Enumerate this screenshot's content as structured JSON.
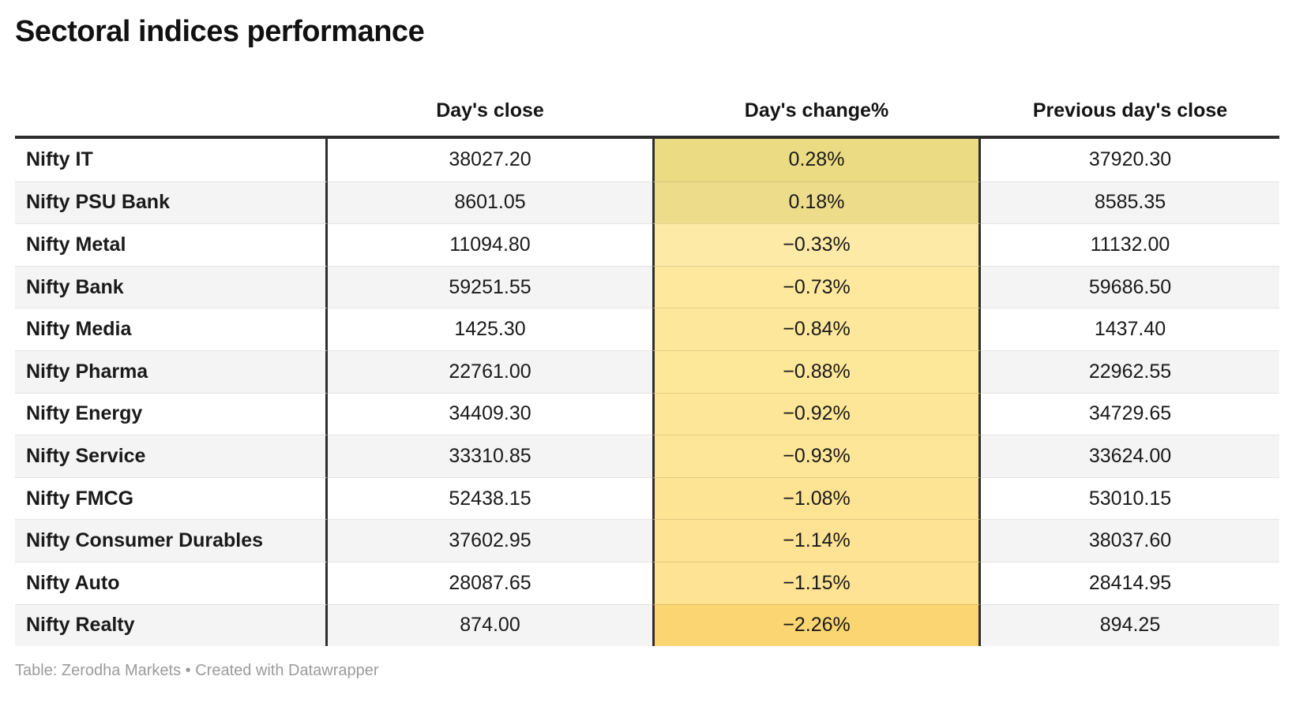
{
  "title": "Sectoral indices performance",
  "columns": [
    "",
    "Day's close",
    "Day's change%",
    "Previous day's close"
  ],
  "rows": [
    {
      "name": "Nifty IT",
      "close": "38027.20",
      "change": "0.28%",
      "prev": "37920.30",
      "heat": "#ebdb83"
    },
    {
      "name": "Nifty PSU Bank",
      "close": "8601.05",
      "change": "0.18%",
      "prev": "8585.35",
      "heat": "#eddd8a"
    },
    {
      "name": "Nifty Metal",
      "close": "11094.80",
      "change": "−0.33%",
      "prev": "11132.00",
      "heat": "#fceaa6"
    },
    {
      "name": "Nifty Bank",
      "close": "59251.55",
      "change": "−0.73%",
      "prev": "59686.50",
      "heat": "#fde89d"
    },
    {
      "name": "Nifty Media",
      "close": "1425.30",
      "change": "−0.84%",
      "prev": "1437.40",
      "heat": "#fde79a"
    },
    {
      "name": "Nifty Pharma",
      "close": "22761.00",
      "change": "−0.88%",
      "prev": "22962.55",
      "heat": "#fde799"
    },
    {
      "name": "Nifty Energy",
      "close": "34409.30",
      "change": "−0.92%",
      "prev": "34729.65",
      "heat": "#fde697"
    },
    {
      "name": "Nifty Service",
      "close": "33310.85",
      "change": "−0.93%",
      "prev": "33624.00",
      "heat": "#fde697"
    },
    {
      "name": "Nifty FMCG",
      "close": "52438.15",
      "change": "−1.08%",
      "prev": "53010.15",
      "heat": "#fde494"
    },
    {
      "name": "Nifty Consumer Durables",
      "close": "37602.95",
      "change": "−1.14%",
      "prev": "38037.60",
      "heat": "#fde393"
    },
    {
      "name": "Nifty Auto",
      "close": "28087.65",
      "change": "−1.15%",
      "prev": "28414.95",
      "heat": "#fde393"
    },
    {
      "name": "Nifty Realty",
      "close": "874.00",
      "change": "−2.26%",
      "prev": "894.25",
      "heat": "#fbd571"
    }
  ],
  "footer": {
    "text": "Table: Zerodha Markets • Created with Datawrapper"
  },
  "colors": {
    "header_border": "#2d2d2d",
    "column_divider": "#2e2e2e",
    "row_divider": "#e3e3e3",
    "alt_row_bg": "#f4f4f4",
    "footer_text": "#9b9b9b",
    "heat_min": "#fbd571",
    "heat_mid": "#fceaa6",
    "heat_max": "#ebdb83"
  },
  "chart_data": {
    "type": "table",
    "title": "Sectoral indices performance",
    "columns": [
      "",
      "Day's close",
      "Day's change%",
      "Previous day's close"
    ],
    "rows": [
      [
        "Nifty IT",
        38027.2,
        "0.28%",
        37920.3
      ],
      [
        "Nifty PSU Bank",
        8601.05,
        "0.18%",
        8585.35
      ],
      [
        "Nifty Metal",
        11094.8,
        "-0.33%",
        11132.0
      ],
      [
        "Nifty Bank",
        59251.55,
        "-0.73%",
        59686.5
      ],
      [
        "Nifty Media",
        1425.3,
        "-0.84%",
        1437.4
      ],
      [
        "Nifty Pharma",
        22761.0,
        "-0.88%",
        22962.55
      ],
      [
        "Nifty Energy",
        34409.3,
        "-0.92%",
        34729.65
      ],
      [
        "Nifty Service",
        33310.85,
        "-0.93%",
        33624.0
      ],
      [
        "Nifty FMCG",
        52438.15,
        "-1.08%",
        53010.15
      ],
      [
        "Nifty Consumer Durables",
        37602.95,
        "-1.14%",
        38037.6
      ],
      [
        "Nifty Auto",
        28087.65,
        "-1.15%",
        28414.95
      ],
      [
        "Nifty Realty",
        874.0,
        "-2.26%",
        894.25
      ]
    ],
    "heatmap_column": "Day's change%",
    "footer": "Table: Zerodha Markets • Created with Datawrapper"
  }
}
